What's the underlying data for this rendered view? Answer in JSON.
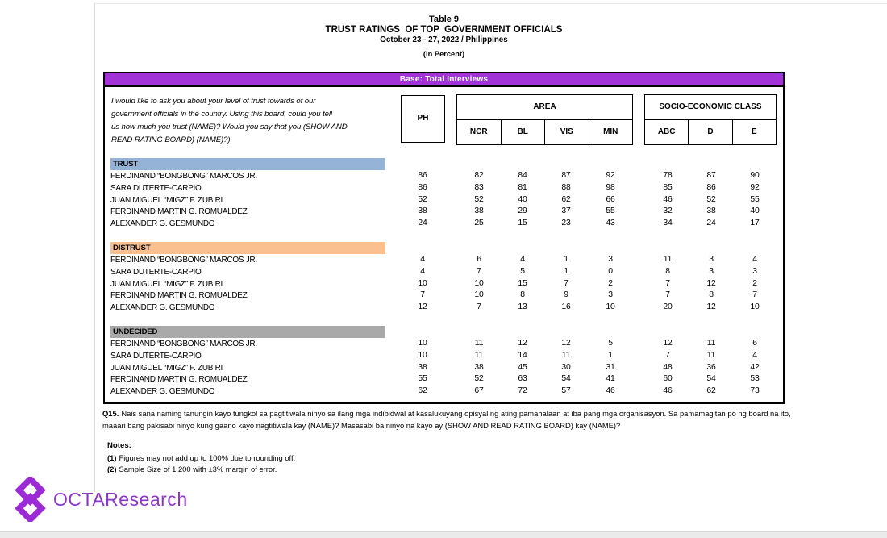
{
  "header": {
    "table_label": "Table 9",
    "title": "TRUST RATINGS  OF TOP  GOVERNMENT OFFICIALS",
    "subtitle": "October 23 - 27, 2022 / Philippines",
    "unit": "(in Percent)"
  },
  "base_bar": "Base: Total Interviews",
  "question": "I would like to ask you about your level of trust towards of our\ngovernment officials in the country. Using this board, could you tell\nus how much you trust (NAME)? Would you say that you (SHOW AND\nREAD RATING BOARD) (NAME)?)",
  "footnote": {
    "q_label": "Q15.",
    "q_text": "Nais sana naming tanungin kayo tungkol sa pagtitiwala ninyo sa ilang mga indibidwal at kasalukuyang opisyal ng ating pamahalaan at iba pang mga organisasyon. Sa pamamagitan po ng board na ito,\nmaaari bang pakisabi ninyo kung gaano kayo nagtitiwala kay (NAME)? Masasabi ba ninyo na kayo ay (SHOW AND READ RATING BOARD) kay (NAME)?"
  },
  "notes": {
    "title": "Notes:",
    "items": [
      {
        "num": "(1)",
        "text": "Figures may not add up to 100% due to rounding off."
      },
      {
        "num": "(2)",
        "text": "Sample Size of 1,200 with ±3% margin of error."
      }
    ]
  },
  "logo": {
    "text": "OCTAResearch",
    "color": "#8C35C9",
    "icon_color": "#9C2BD6"
  },
  "colors": {
    "base_bar_purple": "#A233D6",
    "trust_blue": "#95B3D7",
    "distrust_orange": "#FAC090",
    "undecided_gray": "#A9A9A9"
  },
  "chart_data": {
    "type": "table",
    "title": "TRUST RATINGS OF TOP GOVERNMENT OFFICIALS",
    "period": "October 23 - 27, 2022",
    "location": "Philippines",
    "unit": "Percent",
    "base": "Total Interviews",
    "columns": [
      "PH",
      "NCR",
      "BL",
      "VIS",
      "MIN",
      "ABC",
      "D",
      "E"
    ],
    "column_groups": [
      {
        "label": "AREA",
        "columns": [
          "NCR",
          "BL",
          "VIS",
          "MIN"
        ]
      },
      {
        "label": "SOCIO-ECONOMIC CLASS",
        "columns": [
          "ABC",
          "D",
          "E"
        ]
      }
    ],
    "sections": [
      {
        "label": "TRUST",
        "header_color": "#95B3D7",
        "rows": [
          {
            "name": "FERDINAND “BONGBONG” MARCOS JR.",
            "values": [
              86,
              82,
              84,
              87,
              92,
              78,
              87,
              90
            ]
          },
          {
            "name": "SARA DUTERTE-CARPIO",
            "values": [
              86,
              83,
              81,
              88,
              98,
              85,
              86,
              92
            ]
          },
          {
            "name": "JUAN MIGUEL “MIGZ” F. ZUBIRI",
            "values": [
              52,
              52,
              40,
              62,
              66,
              46,
              52,
              55
            ]
          },
          {
            "name": "FERDINAND MARTIN G. ROMUALDEZ",
            "values": [
              38,
              38,
              29,
              37,
              55,
              32,
              38,
              40
            ]
          },
          {
            "name": "ALEXANDER G. GESMUNDO",
            "values": [
              24,
              25,
              15,
              23,
              43,
              34,
              24,
              17
            ]
          }
        ]
      },
      {
        "label": "DISTRUST",
        "header_color": "#FAC090",
        "rows": [
          {
            "name": "FERDINAND “BONGBONG” MARCOS JR.",
            "values": [
              4,
              6,
              4,
              1,
              3,
              11,
              3,
              4
            ]
          },
          {
            "name": "SARA DUTERTE-CARPIO",
            "values": [
              4,
              7,
              5,
              1,
              0,
              8,
              3,
              3
            ]
          },
          {
            "name": "JUAN MIGUEL “MIGZ” F. ZUBIRI",
            "values": [
              10,
              10,
              15,
              7,
              2,
              7,
              12,
              2
            ]
          },
          {
            "name": "FERDINAND MARTIN G. ROMUALDEZ",
            "values": [
              7,
              10,
              8,
              9,
              3,
              7,
              8,
              7
            ]
          },
          {
            "name": "ALEXANDER G. GESMUNDO",
            "values": [
              12,
              7,
              13,
              16,
              10,
              20,
              12,
              10
            ]
          }
        ]
      },
      {
        "label": "UNDECIDED",
        "header_color": "#A9A9A9",
        "rows": [
          {
            "name": "FERDINAND “BONGBONG” MARCOS JR.",
            "values": [
              10,
              11,
              12,
              12,
              5,
              12,
              11,
              6
            ]
          },
          {
            "name": "SARA DUTERTE-CARPIO",
            "values": [
              10,
              11,
              14,
              11,
              1,
              7,
              11,
              4
            ]
          },
          {
            "name": "JUAN MIGUEL “MIGZ” F. ZUBIRI",
            "values": [
              38,
              38,
              45,
              30,
              31,
              48,
              36,
              42
            ]
          },
          {
            "name": "FERDINAND MARTIN G. ROMUALDEZ",
            "values": [
              55,
              52,
              63,
              54,
              41,
              60,
              54,
              53
            ]
          },
          {
            "name": "ALEXANDER G. GESMUNDO",
            "values": [
              62,
              67,
              72,
              57,
              46,
              46,
              62,
              73
            ]
          }
        ]
      }
    ]
  }
}
